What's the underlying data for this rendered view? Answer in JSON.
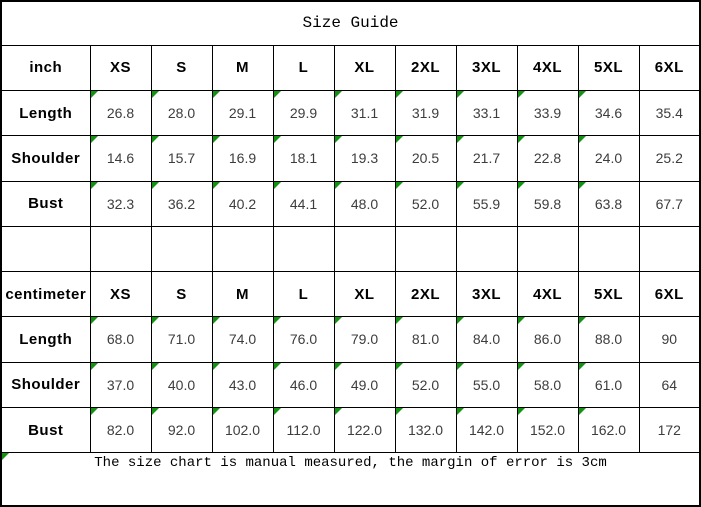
{
  "title": "Size Guide",
  "footer_note": "The size chart is manual measured, the margin of error is 3cm",
  "colors": {
    "background": "#ffffff",
    "border": "#000000",
    "header_text": "#000000",
    "value_text": "#3d3d3d",
    "marker": "#129412"
  },
  "chart_data": {
    "type": "table",
    "title": "Size Guide",
    "note": "The size chart is manual measured, the margin of error is 3cm",
    "size_columns": [
      "XS",
      "S",
      "M",
      "L",
      "XL",
      "2XL",
      "3XL",
      "4XL",
      "5XL",
      "6XL"
    ],
    "rows": [
      [
        "inch",
        "XS",
        "S",
        "M",
        "L",
        "XL",
        "2XL",
        "3XL",
        "4XL",
        "5XL",
        "6XL"
      ],
      [
        "Length",
        "26.8",
        "28.0",
        "29.1",
        "29.9",
        "31.1",
        "31.9",
        "33.1",
        "33.9",
        "34.6",
        "35.4"
      ],
      [
        "Shoulder",
        "14.6",
        "15.7",
        "16.9",
        "18.1",
        "19.3",
        "20.5",
        "21.7",
        "22.8",
        "24.0",
        "25.2"
      ],
      [
        "Bust",
        "32.3",
        "36.2",
        "40.2",
        "44.1",
        "48.0",
        "52.0",
        "55.9",
        "59.8",
        "63.8",
        "67.7"
      ],
      [
        "",
        "",
        "",
        "",
        "",
        "",
        "",
        "",
        "",
        "",
        ""
      ],
      [
        "centimeter",
        "XS",
        "S",
        "M",
        "L",
        "XL",
        "2XL",
        "3XL",
        "4XL",
        "5XL",
        "6XL"
      ],
      [
        "Length",
        "68.0",
        "71.0",
        "74.0",
        "76.0",
        "79.0",
        "81.0",
        "84.0",
        "86.0",
        "88.0",
        "90"
      ],
      [
        "Shoulder",
        "37.0",
        "40.0",
        "43.0",
        "46.0",
        "49.0",
        "52.0",
        "55.0",
        "58.0",
        "61.0",
        "64"
      ],
      [
        "Bust",
        "82.0",
        "92.0",
        "102.0",
        "112.0",
        "122.0",
        "132.0",
        "142.0",
        "152.0",
        "162.0",
        "172"
      ]
    ],
    "layout_hints": {
      "sections": [
        "inch",
        "centimeter"
      ],
      "green_corner_marker_on": "data cells for sizes XS through 5XL and the footer note cell",
      "grid": "all cells bordered, black grid on white"
    }
  }
}
